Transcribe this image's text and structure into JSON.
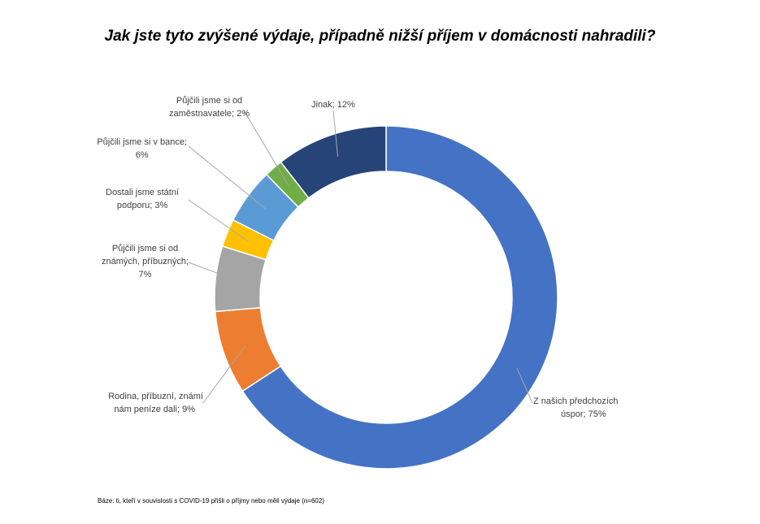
{
  "chart_data": {
    "type": "pie",
    "variant": "donut",
    "title": "Jak jste tyto zvýšené výdaje, případně nižší příjem v domácnosti nahradili?",
    "unit": "%",
    "slices": [
      {
        "label": "Z našich předchozích úspor",
        "value": 75,
        "color": "#4472C4",
        "text": "Z našich předchozích úspor; 75%",
        "lines": [
          "Z našich předchozích",
          "úspor; 75%"
        ]
      },
      {
        "label": "Rodina, příbuzní, známí nám peníze dali",
        "value": 9,
        "color": "#ED7D31",
        "text": "Rodina, příbuzní, známí nám peníze dali; 9%",
        "lines": [
          "Rodina, příbuzní, známí",
          "nám peníze dali; 9%"
        ]
      },
      {
        "label": "Půjčili jsme si od známých, příbuzných",
        "value": 7,
        "color": "#A5A5A5",
        "text": "Půjčili jsme si od známých, příbuzných; 7%",
        "lines": [
          "Půjčili jsme si od",
          "známých, příbuzných;",
          "7%"
        ]
      },
      {
        "label": "Dostali jsme státní podporu",
        "value": 3,
        "color": "#FFC000",
        "text": "Dostali jsme státní podporu; 3%",
        "lines": [
          "Dostali jsme státní",
          "podporu; 3%"
        ]
      },
      {
        "label": "Půjčili jsme si v bance",
        "value": 6,
        "color": "#5B9BD5",
        "text": "Půjčili jsme si v bance; 6%",
        "lines": [
          "Půjčili jsme si v bance;",
          "6%"
        ]
      },
      {
        "label": "Půjčili jsme si od zaměstnavatele",
        "value": 2,
        "color": "#70AD47",
        "text": "Půjčili jsme si od zaměstnavatele; 2%",
        "lines": [
          "Půjčili jsme si od",
          "zaměstnavatele; 2%"
        ]
      },
      {
        "label": "Jinak",
        "value": 12,
        "color": "#264478",
        "text": "Jinak; 12%",
        "lines": [
          "Jinak; 12%"
        ]
      }
    ]
  },
  "footnote": "Báze: ti, kteří v souvislosti s COVID-19 přišli o příjmy nebo měli výdaje (n=602)"
}
